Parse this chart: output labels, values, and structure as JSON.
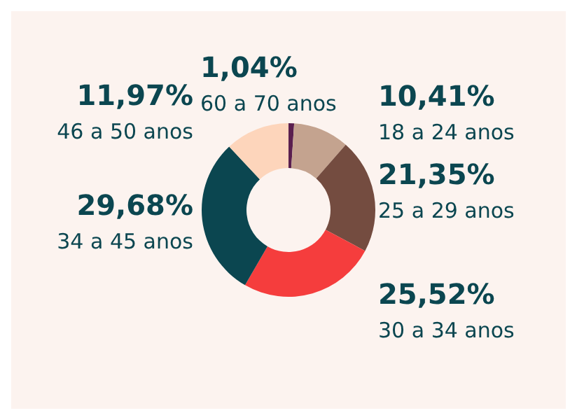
{
  "chart_data": {
    "type": "donut",
    "categories": [
      "60 a 70 anos",
      "18 a 24 anos",
      "25 a 29 anos",
      "30 a 34 anos",
      "34 a 45 anos",
      "46 a 50 anos"
    ],
    "values": [
      1.04,
      10.41,
      21.35,
      25.52,
      29.68,
      11.97
    ],
    "value_labels": [
      "1,04%",
      "10,41%",
      "21,35%",
      "25,52%",
      "29,68%",
      "11,97%"
    ],
    "colors": [
      "#5a1f4f",
      "#c4a38f",
      "#744c40",
      "#f53d3d",
      "#0b4650",
      "#fdd5bb"
    ],
    "legend": false
  }
}
